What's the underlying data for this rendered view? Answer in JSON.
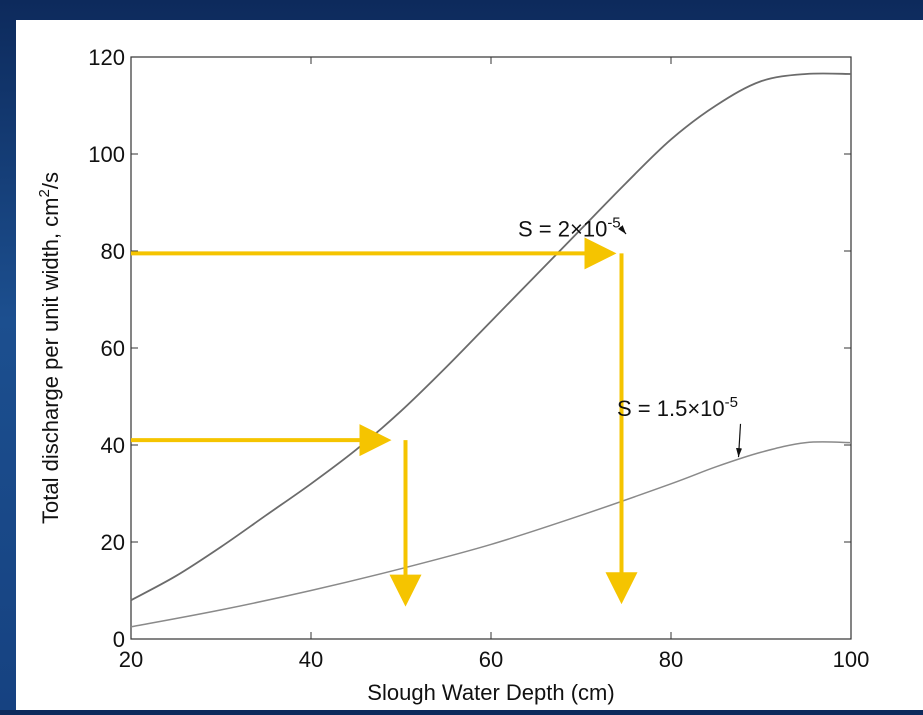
{
  "chart_data": {
    "type": "line",
    "xlabel": "Slough Water Depth (cm)",
    "ylabel": "Total discharge per unit width, cm²/s",
    "ylabel_main": "Total discharge per unit width, cm",
    "ylabel_sup": "2",
    "ylabel_tail": "/s",
    "xlim": [
      20,
      100
    ],
    "ylim": [
      0,
      120
    ],
    "xticks": [
      20,
      40,
      60,
      80,
      100
    ],
    "yticks": [
      0,
      20,
      40,
      60,
      80,
      100,
      120
    ],
    "grid": false,
    "series": [
      {
        "name": "S = 2×10⁻⁵",
        "label_main": "S = 2×10",
        "label_exp": "-5",
        "color": "#6b6b6b",
        "x": [
          20,
          25,
          30,
          35,
          40,
          45,
          50,
          55,
          60,
          65,
          70,
          75,
          80,
          85,
          90,
          95,
          100
        ],
        "y": [
          8,
          13,
          19,
          25.5,
          32,
          39,
          47,
          56,
          65.5,
          75,
          84.5,
          94,
          103,
          110,
          115,
          116.5,
          116.5
        ]
      },
      {
        "name": "S = 1.5×10⁻⁵",
        "label_main": "S = 1.5×10",
        "label_exp": "-5",
        "color": "#8a8a8a",
        "x": [
          20,
          30,
          40,
          50,
          60,
          70,
          80,
          85,
          90,
          95,
          100
        ],
        "y": [
          2.5,
          6,
          10,
          14.5,
          19.5,
          25.5,
          32,
          35.5,
          38.5,
          40.5,
          40.5
        ]
      }
    ],
    "annotations": [
      {
        "text_series": 0,
        "label_x": 63,
        "label_y": 83,
        "arrow_to_x": 75,
        "arrow_to_y": 83.5
      },
      {
        "text_series": 1,
        "label_x": 74,
        "label_y": 46,
        "arrow_to_x": 87.5,
        "arrow_to_y": 37.5
      }
    ],
    "guide_arrows": {
      "color": "#f5c400",
      "items": [
        {
          "from_x": 20,
          "y": 79.5,
          "to_x": 73.5,
          "down_x": 74.5,
          "down_from_y": 79.5,
          "down_to_y": 8
        },
        {
          "from_x": 20,
          "y": 41,
          "to_x": 48.5,
          "down_x": 50.5,
          "down_from_y": 41,
          "down_to_y": 7.5
        }
      ]
    }
  }
}
